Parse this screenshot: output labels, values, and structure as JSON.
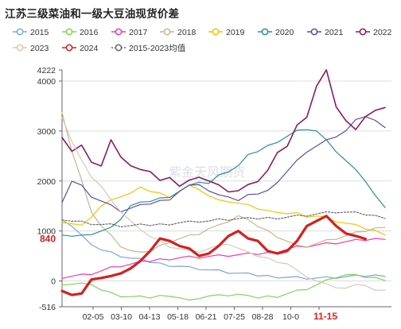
{
  "title": "江苏三级菜油和一级大豆油现货价差",
  "watermark": "紫金天风期货",
  "chart_data": {
    "type": "line",
    "title": "江苏三级菜油和一级大豆油现货价差",
    "x_ticks": [
      "02-05",
      "03-10",
      "04-13",
      "05-18",
      "06-21",
      "07-25",
      "08-28",
      "10-0",
      "11-15"
    ],
    "x_highlight_tick": "11-15",
    "y_ticks": [
      -516,
      0,
      1000,
      2000,
      3000,
      4000,
      4222
    ],
    "ylim": [
      -516,
      4222
    ],
    "y_marker": {
      "value": 840,
      "label": "840"
    },
    "grid": "horizontal",
    "legend_position": "top",
    "series": [
      {
        "name": "2015",
        "color": "#7da7d9",
        "dashed": false,
        "width": 1.2,
        "values": [
          1250,
          1100,
          900,
          750,
          620,
          560,
          500,
          450,
          420,
          380,
          350,
          320,
          300,
          270,
          250,
          220,
          200,
          170,
          150,
          130,
          110,
          100,
          90,
          80,
          70,
          60,
          60,
          60,
          70,
          80,
          90,
          100,
          110,
          120
        ]
      },
      {
        "name": "2016",
        "color": "#7ed35a",
        "dashed": false,
        "width": 1.2,
        "values": [
          -50,
          -60,
          -60,
          -50,
          -180,
          -250,
          -300,
          -320,
          -330,
          -330,
          -300,
          -280,
          -330,
          -400,
          -330,
          -300,
          -300,
          -280,
          -270,
          -320,
          -330,
          -310,
          -300,
          -250,
          -200,
          -150,
          -80,
          0,
          80,
          120,
          100,
          80,
          60,
          40
        ]
      },
      {
        "name": "2017",
        "color": "#f03ca4",
        "dashed": false,
        "width": 1.2,
        "values": [
          80,
          100,
          120,
          150,
          200,
          260,
          300,
          330,
          370,
          400,
          430,
          450,
          470,
          480,
          480,
          490,
          500,
          510,
          520,
          530,
          540,
          560,
          600,
          640,
          680,
          700,
          720,
          740,
          760,
          780,
          800,
          820,
          840,
          860
        ]
      },
      {
        "name": "2018",
        "color": "#c7b58c",
        "dashed": false,
        "width": 1.2,
        "values": [
          3400,
          2600,
          2000,
          1400,
          1100,
          900,
          700,
          600,
          550,
          600,
          700,
          800,
          850,
          900,
          950,
          1050,
          1100,
          1200,
          1300,
          1200,
          1100,
          1000,
          900,
          800,
          700,
          700,
          750,
          800,
          850,
          900,
          950,
          1000,
          1050,
          1100
        ]
      },
      {
        "name": "2019",
        "color": "#f5c400",
        "dashed": false,
        "width": 1.2,
        "values": [
          1200,
          1150,
          1100,
          1300,
          1500,
          1600,
          1700,
          1750,
          1850,
          1800,
          1750,
          1700,
          1800,
          1900,
          1850,
          1700,
          1600,
          1600,
          1550,
          1500,
          1450,
          1400,
          1400,
          1350,
          1350,
          1300,
          1300,
          1250,
          1200,
          1150,
          1100,
          1050,
          1000,
          950
        ]
      },
      {
        "name": "2020",
        "color": "#2a8f8f",
        "dashed": false,
        "width": 1.2,
        "values": [
          950,
          900,
          900,
          950,
          1000,
          1050,
          1250,
          1500,
          1550,
          1600,
          1650,
          1700,
          1800,
          1900,
          2000,
          1950,
          2100,
          2200,
          2300,
          2500,
          2600,
          2700,
          2800,
          2900,
          3000,
          3050,
          3000,
          2800,
          2600,
          2400,
          2200,
          2000,
          1700,
          1500
        ]
      },
      {
        "name": "2021",
        "color": "#5a4bb0",
        "dashed": false,
        "width": 1.2,
        "values": [
          1600,
          2000,
          1900,
          1700,
          1600,
          1500,
          1400,
          1450,
          1500,
          1550,
          1600,
          1650,
          1800,
          1900,
          1950,
          1800,
          1700,
          1700,
          1600,
          1700,
          1750,
          1800,
          2000,
          2200,
          2400,
          2600,
          2700,
          2800,
          2900,
          3000,
          3200,
          3300,
          3200,
          3100
        ]
      },
      {
        "name": "2022",
        "color": "#8a1c5e",
        "dashed": false,
        "width": 1.6,
        "values": [
          2900,
          2600,
          2700,
          2400,
          2300,
          2800,
          2500,
          2300,
          2200,
          2200,
          2000,
          2100,
          1900,
          2000,
          2100,
          2000,
          1900,
          1800,
          1800,
          1900,
          2000,
          2200,
          2600,
          2700,
          3100,
          3300,
          3900,
          4200,
          3500,
          3200,
          3000,
          3300,
          3400,
          3500
        ]
      },
      {
        "name": "2023",
        "color": "#d8c8b8",
        "dashed": false,
        "width": 1.2,
        "values": [
          3300,
          2800,
          2400,
          2100,
          1900,
          1600,
          1400,
          1200,
          1000,
          900,
          800,
          700,
          650,
          600,
          600,
          650,
          700,
          750,
          650,
          550,
          500,
          450,
          400,
          350,
          200,
          100,
          0,
          -80,
          -120,
          -150,
          -100,
          -80,
          -200,
          -150
        ]
      },
      {
        "name": "2024",
        "color": "#d42020",
        "dashed": false,
        "width": 3.2,
        "values": [
          -200,
          -280,
          -250,
          30,
          60,
          100,
          150,
          250,
          400,
          600,
          850,
          800,
          700,
          650,
          500,
          550,
          700,
          900,
          1000,
          850,
          800,
          600,
          550,
          600,
          800,
          1100,
          1200,
          1300,
          1100,
          950,
          900,
          840
        ]
      },
      {
        "name": "2015-2023均值",
        "color": "#666666",
        "dashed": true,
        "width": 1.2,
        "values": [
          1250,
          1200,
          1180,
          1150,
          1130,
          1120,
          1100,
          1100,
          1110,
          1120,
          1130,
          1150,
          1170,
          1180,
          1200,
          1200,
          1220,
          1230,
          1240,
          1240,
          1250,
          1260,
          1270,
          1280,
          1300,
          1320,
          1340,
          1360,
          1380,
          1370,
          1350,
          1330,
          1300,
          1280
        ]
      }
    ]
  }
}
